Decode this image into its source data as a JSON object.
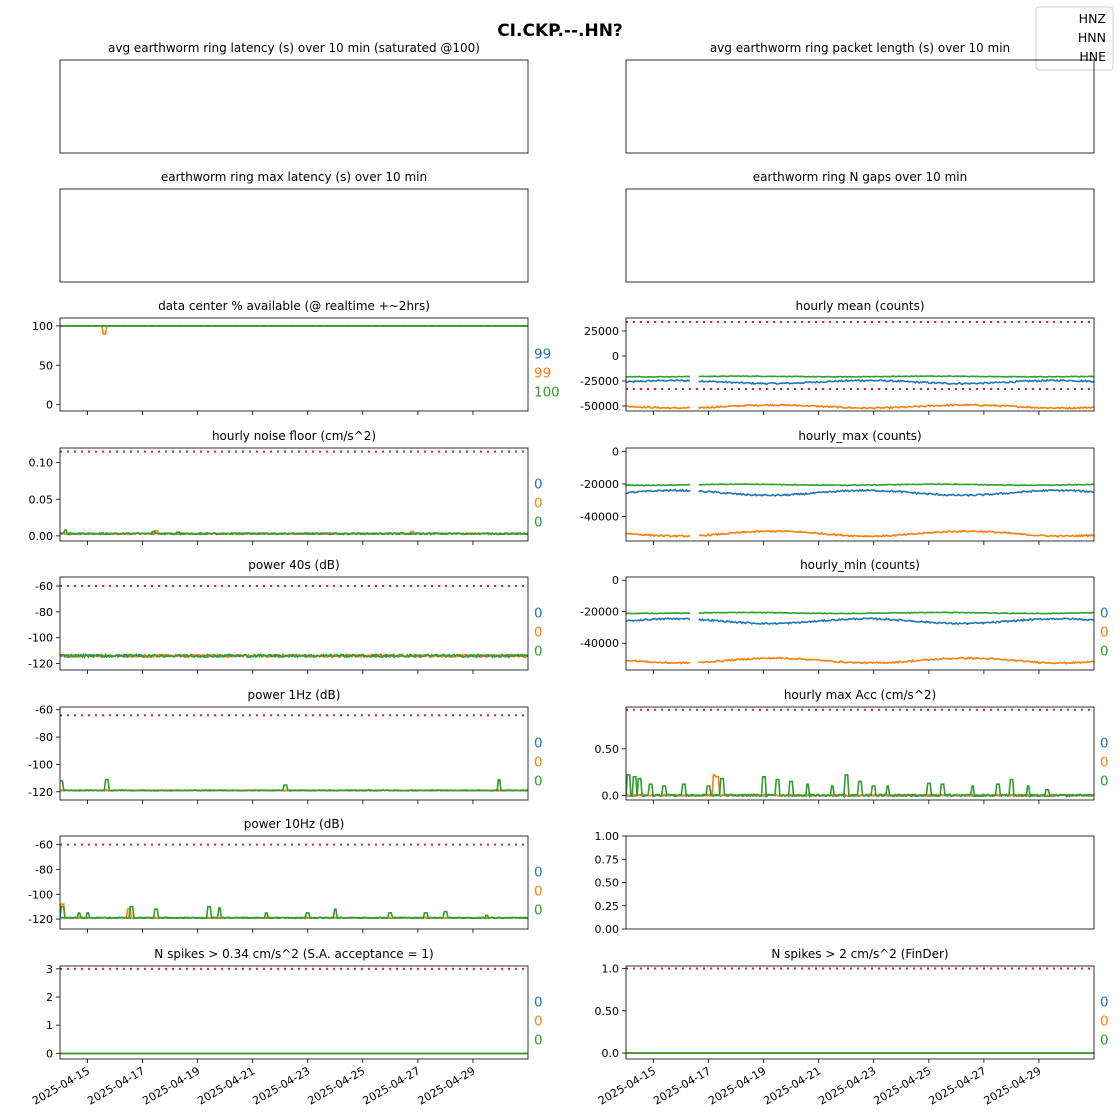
{
  "title": "CI.CKP.--.HN?",
  "legend": {
    "placement": "top-right",
    "entries": [
      {
        "name": "HNZ",
        "color": "#1f77b4"
      },
      {
        "name": "HNN",
        "color": "#ff7f0e"
      },
      {
        "name": "HNE",
        "color": "#2ca02c"
      }
    ]
  },
  "colors": {
    "HNZ": "#1f77b4",
    "HNN": "#ff7f0e",
    "HNE": "#2ca02c",
    "threshold": "#d62728"
  },
  "x_axis": {
    "type": "date",
    "range": [
      "2025-04-14",
      "2025-04-30T23:59"
    ],
    "tick_labels": [
      "2025-04-15",
      "2025-04-17",
      "2025-04-19",
      "2025-04-21",
      "2025-04-23",
      "2025-04-25",
      "2025-04-27",
      "2025-04-29"
    ]
  },
  "chart_data": [
    {
      "id": "latency_avg",
      "type": "line",
      "title": "avg earthworm ring latency (s)   over 10 min (saturated @100)",
      "empty": true,
      "yticks": [],
      "series": [],
      "side_labels": []
    },
    {
      "id": "packet_len",
      "type": "line",
      "title": "avg earthworm ring packet length (s)   over 10 min",
      "empty": true,
      "yticks": [],
      "series": [],
      "side_labels": []
    },
    {
      "id": "latency_max",
      "type": "line",
      "title": "earthworm ring max latency (s)   over 10 min",
      "empty": true,
      "yticks": [],
      "series": [],
      "side_labels": []
    },
    {
      "id": "ngaps",
      "type": "line",
      "title": "earthworm ring N gaps   over 10 min",
      "empty": true,
      "yticks": [],
      "series": [],
      "side_labels": []
    },
    {
      "id": "availability",
      "type": "line",
      "title": "data center % available (@ realtime +~2hrs)",
      "ylim": [
        -8,
        110
      ],
      "yticks": [
        0,
        50,
        100
      ],
      "thresholds": [
        100
      ],
      "series": [
        {
          "channel": "HNZ",
          "base": 100,
          "noise": 0,
          "spikes": []
        },
        {
          "channel": "HNN",
          "base": 100,
          "noise": 0,
          "spikes": [
            [
              1.6,
              90
            ]
          ]
        },
        {
          "channel": "HNE",
          "base": 100,
          "noise": 0,
          "spikes": []
        }
      ],
      "side_labels": [
        "99",
        "99",
        "100"
      ]
    },
    {
      "id": "hourly_mean",
      "type": "line",
      "title": "hourly mean (counts)",
      "ylim": [
        -55000,
        38000
      ],
      "yticks": [
        25000,
        0,
        -25000,
        -50000
      ],
      "thresholds": [
        34000,
        -33000
      ],
      "series": [
        {
          "channel": "HNZ",
          "base": -26000,
          "noise": 800,
          "wave": 1500
        },
        {
          "channel": "HNN",
          "base": -50500,
          "noise": 800,
          "wave": 1500
        },
        {
          "channel": "HNE",
          "base": -20500,
          "noise": 300,
          "wave": 300
        }
      ],
      "side_labels": []
    },
    {
      "id": "noise_floor",
      "type": "line",
      "title": "hourly noise floor (cm/s^2)",
      "ylim": [
        -0.007,
        0.12
      ],
      "yticks": [
        0.0,
        0.05,
        0.1
      ],
      "thresholds": [
        0.115
      ],
      "series": [
        {
          "channel": "HNZ",
          "base": 0.003,
          "noise": 0.001,
          "spikes": []
        },
        {
          "channel": "HNN",
          "base": 0.003,
          "noise": 0.001,
          "spikes": [
            [
              3.5,
              0.007
            ],
            [
              12.8,
              0.006
            ]
          ]
        },
        {
          "channel": "HNE",
          "base": 0.003,
          "noise": 0.001,
          "spikes": [
            [
              0.2,
              0.008
            ],
            [
              3.4,
              0.006
            ],
            [
              4.3,
              0.005
            ]
          ]
        }
      ],
      "side_labels": [
        "0",
        "0",
        "0"
      ]
    },
    {
      "id": "hourly_max",
      "type": "line",
      "title": "hourly_max (counts)",
      "ylim": [
        -55000,
        2000
      ],
      "yticks": [
        0,
        -20000,
        -40000
      ],
      "thresholds": [],
      "series": [
        {
          "channel": "HNZ",
          "base": -25500,
          "noise": 500,
          "wave": 1500
        },
        {
          "channel": "HNN",
          "base": -50500,
          "noise": 500,
          "wave": 1500
        },
        {
          "channel": "HNE",
          "base": -20500,
          "noise": 200,
          "wave": 300
        }
      ],
      "side_labels": []
    },
    {
      "id": "power_40s",
      "type": "line",
      "title": "power 40s (dB)",
      "ylim": [
        -125,
        -53
      ],
      "yticks": [
        -60,
        -80,
        -100,
        -120
      ],
      "thresholds": [
        -60
      ],
      "series": [
        {
          "channel": "HNZ",
          "base": -114,
          "noise": 1.0,
          "spikes": []
        },
        {
          "channel": "HNN",
          "base": -114,
          "noise": 1.0,
          "spikes": []
        },
        {
          "channel": "HNE",
          "base": -114,
          "noise": 1.0,
          "spikes": []
        }
      ],
      "side_labels": [
        "0",
        "0",
        "0"
      ]
    },
    {
      "id": "hourly_min",
      "type": "line",
      "title": "hourly_min (counts)",
      "ylim": [
        -57000,
        2000
      ],
      "yticks": [
        0,
        -20000,
        -40000
      ],
      "thresholds": [],
      "series": [
        {
          "channel": "HNZ",
          "base": -26000,
          "noise": 500,
          "wave": 1500
        },
        {
          "channel": "HNN",
          "base": -51000,
          "noise": 500,
          "wave": 1500
        },
        {
          "channel": "HNE",
          "base": -20800,
          "noise": 200,
          "wave": 300
        }
      ],
      "side_labels": [
        "0",
        "0",
        "0"
      ]
    },
    {
      "id": "power_1hz",
      "type": "line",
      "title": "power 1Hz (dB)",
      "ylim": [
        -126,
        -58
      ],
      "yticks": [
        -60,
        -80,
        -100,
        -120
      ],
      "thresholds": [
        -64
      ],
      "series": [
        {
          "channel": "HNZ",
          "base": -119,
          "noise": 0.3,
          "spikes": []
        },
        {
          "channel": "HNN",
          "base": -119,
          "noise": 0.3,
          "spikes": []
        },
        {
          "channel": "HNE",
          "base": -119,
          "noise": 0.3,
          "spikes": [
            [
              0.05,
              -112
            ],
            [
              1.7,
              -111
            ],
            [
              8.2,
              -115
            ],
            [
              15.95,
              -111
            ]
          ]
        }
      ],
      "side_labels": [
        "0",
        "0",
        "0"
      ]
    },
    {
      "id": "hourly_max_acc",
      "type": "line",
      "title": "hourly max Acc (cm/s^2)",
      "ylim": [
        -0.05,
        0.95
      ],
      "yticks": [
        0.0,
        0.5
      ],
      "thresholds": [
        0.92
      ],
      "series": [
        {
          "channel": "HNZ",
          "base": 0.0,
          "noise": 0.01,
          "spikes": []
        },
        {
          "channel": "HNN",
          "base": 0.0,
          "noise": 0.01,
          "spikes": [
            [
              3.2,
              0.22
            ],
            [
              3.3,
              0.2
            ]
          ]
        },
        {
          "channel": "HNE",
          "base": 0.0,
          "noise": 0.01,
          "spikes": [
            [
              0.1,
              0.22
            ],
            [
              0.3,
              0.2
            ],
            [
              0.5,
              0.18
            ],
            [
              0.9,
              0.12
            ],
            [
              1.4,
              0.1
            ],
            [
              2.1,
              0.12
            ],
            [
              3.0,
              0.1
            ],
            [
              3.5,
              0.18
            ],
            [
              5.0,
              0.2
            ],
            [
              5.5,
              0.17
            ],
            [
              6.0,
              0.15
            ],
            [
              6.6,
              0.12
            ],
            [
              7.5,
              0.1
            ],
            [
              8.0,
              0.22
            ],
            [
              8.5,
              0.15
            ],
            [
              9.0,
              0.1
            ],
            [
              9.5,
              0.1
            ],
            [
              11.0,
              0.13
            ],
            [
              11.5,
              0.12
            ],
            [
              12.6,
              0.1
            ],
            [
              13.5,
              0.12
            ],
            [
              14.0,
              0.17
            ],
            [
              14.6,
              0.1
            ],
            [
              15.3,
              0.06
            ]
          ]
        }
      ],
      "side_labels": [
        "0",
        "0",
        "0"
      ]
    },
    {
      "id": "power_10hz",
      "type": "line",
      "title": "power 10Hz (dB)",
      "ylim": [
        -128,
        -53
      ],
      "yticks": [
        -60,
        -80,
        -100,
        -120
      ],
      "thresholds": [
        -60
      ],
      "series": [
        {
          "channel": "HNZ",
          "base": -119,
          "noise": 0.4,
          "spikes": []
        },
        {
          "channel": "HNN",
          "base": -119,
          "noise": 0.4,
          "spikes": [
            [
              0.1,
              -108
            ],
            [
              2.5,
              -112
            ]
          ]
        },
        {
          "channel": "HNE",
          "base": -119,
          "noise": 0.4,
          "spikes": [
            [
              0.1,
              -110
            ],
            [
              0.7,
              -115
            ],
            [
              1.0,
              -115
            ],
            [
              2.6,
              -110
            ],
            [
              3.5,
              -112
            ],
            [
              5.4,
              -110
            ],
            [
              5.8,
              -111
            ],
            [
              7.5,
              -115
            ],
            [
              9.0,
              -115
            ],
            [
              10.0,
              -112
            ],
            [
              12.0,
              -115
            ],
            [
              13.3,
              -115
            ],
            [
              14.0,
              -114
            ],
            [
              15.5,
              -117
            ]
          ]
        }
      ],
      "side_labels": [
        "0",
        "0",
        "0"
      ]
    },
    {
      "id": "blank",
      "type": "line",
      "title": "",
      "ylim": [
        0,
        1
      ],
      "yticks": [
        0.0,
        0.25,
        0.5,
        0.75,
        1.0
      ],
      "ytick_decimals": 2,
      "xticks_visible": false,
      "thresholds": [],
      "series": [],
      "side_labels": []
    },
    {
      "id": "spikes_034",
      "type": "line",
      "title": "N spikes > 0.34 cm/s^2 (S.A. acceptance = 1)",
      "ylim": [
        -0.2,
        3.1
      ],
      "yticks": [
        0,
        1,
        2,
        3
      ],
      "thresholds": [
        3
      ],
      "series": [
        {
          "channel": "HNZ",
          "base": 0,
          "noise": 0
        },
        {
          "channel": "HNN",
          "base": 0,
          "noise": 0
        },
        {
          "channel": "HNE",
          "base": 0,
          "noise": 0
        }
      ],
      "side_labels": [
        "0",
        "0",
        "0"
      ]
    },
    {
      "id": "spikes_2",
      "type": "line",
      "title": "N spikes > 2 cm/s^2 (FinDer)",
      "ylim": [
        -0.07,
        1.03
      ],
      "yticks": [
        0.0,
        0.5,
        1.0
      ],
      "thresholds": [
        1.0
      ],
      "series": [
        {
          "channel": "HNZ",
          "base": 0,
          "noise": 0
        },
        {
          "channel": "HNN",
          "base": 0,
          "noise": 0
        },
        {
          "channel": "HNE",
          "base": 0,
          "noise": 0
        }
      ],
      "side_labels": [
        "0",
        "0",
        "0"
      ]
    }
  ]
}
